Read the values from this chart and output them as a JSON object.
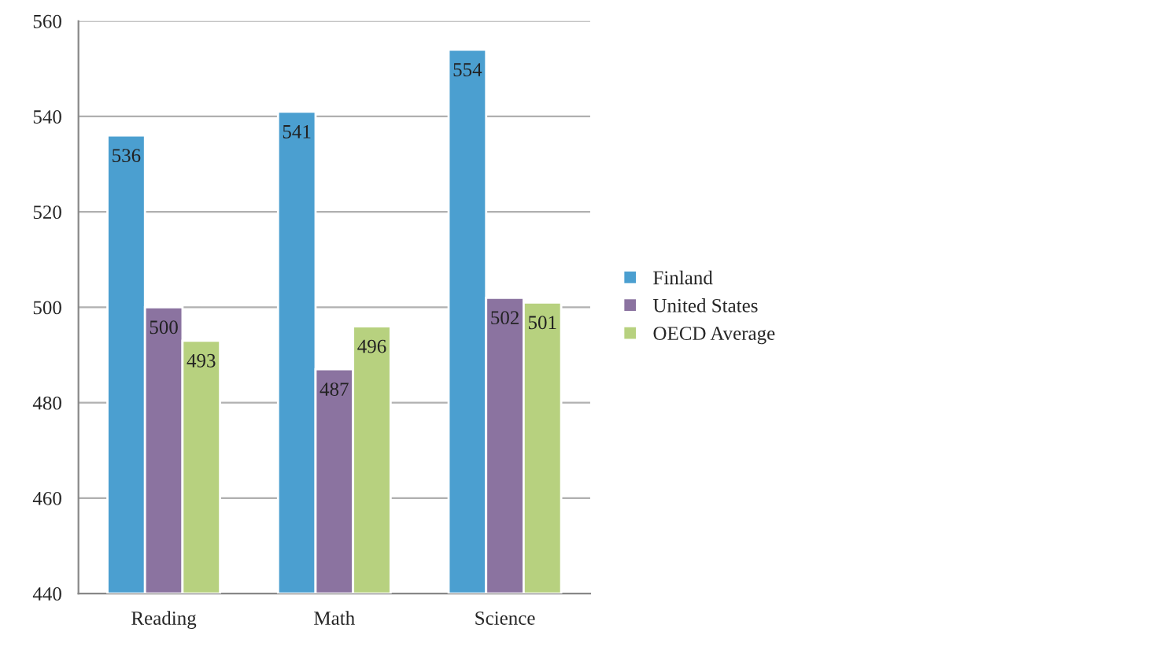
{
  "chart_data": {
    "type": "bar",
    "categories": [
      "Reading",
      "Math",
      "Science"
    ],
    "series": [
      {
        "name": "Finland",
        "color": "#4b9fd0",
        "values": [
          536,
          541,
          554
        ]
      },
      {
        "name": "United States",
        "color": "#8b73a0",
        "values": [
          500,
          487,
          502
        ]
      },
      {
        "name": "OECD Average",
        "color": "#b7d17f",
        "values": [
          493,
          496,
          501
        ]
      }
    ],
    "ylim": [
      440,
      560
    ],
    "yticks": [
      440,
      460,
      480,
      500,
      520,
      540,
      560
    ],
    "grid": "y",
    "legend": "right",
    "data_labels": true
  }
}
